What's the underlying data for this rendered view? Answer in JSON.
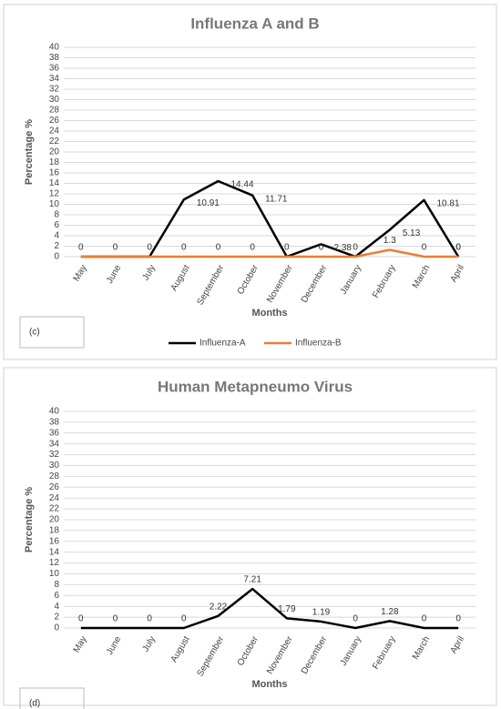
{
  "chart_data": [
    {
      "type": "line",
      "title": "Influenza A and B",
      "y_label": "Percentage %",
      "x_label": "Months",
      "annotation": "(c)",
      "categories": [
        "May",
        "June",
        "July",
        "August",
        "September",
        "October",
        "November",
        "December",
        "January",
        "February",
        "March",
        "April"
      ],
      "series": [
        {
          "name": "Influenza-A",
          "color": "#000000",
          "values": [
            0,
            0,
            0,
            10.91,
            14.44,
            11.71,
            0,
            2.38,
            0,
            5.13,
            10.81,
            0
          ]
        },
        {
          "name": "Influenza-B",
          "color": "#ed7d31",
          "values": [
            0,
            0,
            0,
            0,
            0,
            0,
            0,
            0,
            0,
            1.3,
            0,
            0
          ]
        }
      ],
      "ylim": [
        0,
        40
      ],
      "yticks": [
        0,
        2,
        4,
        6,
        8,
        10,
        12,
        14,
        16,
        18,
        20,
        22,
        24,
        26,
        28,
        30,
        32,
        34,
        36,
        38,
        40
      ],
      "grid": true,
      "legend": "bottom"
    },
    {
      "type": "line",
      "title": "Human Metapneumo Virus",
      "y_label": "Percentage %",
      "x_label": "Months",
      "annotation": "(d)",
      "categories": [
        "May",
        "June",
        "July",
        "August",
        "September",
        "October",
        "November",
        "December",
        "January",
        "February",
        "March",
        "April"
      ],
      "series": [
        {
          "color": "#000000",
          "values": [
            0,
            0,
            0,
            0,
            2.22,
            7.21,
            1.79,
            1.19,
            0,
            1.28,
            0,
            0
          ]
        }
      ],
      "ylim": [
        0,
        40
      ],
      "yticks": [
        0,
        2,
        4,
        6,
        8,
        10,
        12,
        14,
        16,
        18,
        20,
        22,
        24,
        26,
        28,
        30,
        32,
        34,
        36,
        38,
        40
      ],
      "grid": true
    }
  ]
}
